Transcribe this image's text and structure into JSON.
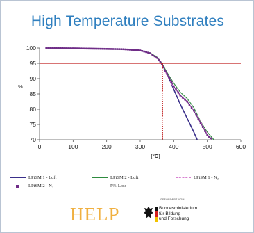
{
  "slide": {
    "title": "High Temperature Substrates"
  },
  "chart_data": {
    "type": "line",
    "title": "",
    "xlabel": "[°C]",
    "ylabel": "%",
    "xlim": [
      0,
      600
    ],
    "ylim": [
      70,
      100
    ],
    "xticks": [
      "0",
      "100",
      "200",
      "300",
      "400",
      "500",
      "600"
    ],
    "yticks": [
      "100",
      "95",
      "90",
      "85",
      "80",
      "75",
      "70"
    ],
    "grid": false,
    "legend": "bottom",
    "series": [
      {
        "name": "LPiSM 1 - Luft",
        "color": "#3a2f8a",
        "x": [
          20,
          100,
          200,
          250,
          300,
          330,
          350,
          365,
          380,
          400,
          420,
          440,
          460,
          470
        ],
        "y": [
          100,
          99.9,
          99.7,
          99.6,
          99.2,
          98.3,
          96.8,
          94.8,
          91.5,
          86.5,
          81.5,
          77,
          72.5,
          70
        ]
      },
      {
        "name": "LPiSM 2 - Luft",
        "color": "#2e8b3e",
        "x": [
          20,
          100,
          200,
          250,
          300,
          330,
          350,
          365,
          380,
          400,
          420,
          440,
          460,
          480,
          500,
          520
        ],
        "y": [
          100,
          99.9,
          99.7,
          99.6,
          99.2,
          98.4,
          97,
          95,
          92,
          88.5,
          85.5,
          83.5,
          80.5,
          76,
          72.5,
          70
        ]
      },
      {
        "name": "LPiSM 1 - N₂",
        "color": "#d77fd0",
        "x": [
          20,
          100,
          200,
          250,
          300,
          330,
          350,
          365,
          380,
          400,
          420,
          440,
          460,
          480,
          500,
          510
        ],
        "y": [
          100,
          99.9,
          99.7,
          99.6,
          99.2,
          98.2,
          96.6,
          94.5,
          91,
          87,
          84,
          82.5,
          79.5,
          76,
          72,
          70
        ]
      },
      {
        "name": "LPiSM 2 - N₂",
        "color": "#6f2c87",
        "x": [
          20,
          100,
          200,
          250,
          300,
          330,
          350,
          365,
          380,
          400,
          420,
          440,
          460,
          480,
          500,
          515
        ],
        "y": [
          100,
          99.9,
          99.7,
          99.6,
          99.2,
          98.3,
          96.8,
          94.8,
          91.5,
          87.5,
          84.5,
          82.5,
          79.5,
          75.5,
          71.5,
          70
        ]
      },
      {
        "name": "5%-Loss",
        "color": "#c02020",
        "x": [
          0,
          600
        ],
        "y": [
          95,
          95
        ]
      }
    ],
    "annotations": [
      {
        "type": "vline",
        "x": 367,
        "color": "#c02020",
        "style": "dotted"
      }
    ]
  },
  "legend_items": [
    {
      "label": "LPiSM 1 - Luft",
      "color": "#3a2f8a",
      "style": "solid"
    },
    {
      "label": "LPiSM 2 - Luft",
      "color": "#2e8b3e",
      "style": "solid"
    },
    {
      "label": "LPiSM 1 - N₂",
      "color": "#d77fd0",
      "style": "dashed"
    },
    {
      "label": "LPiSM 2 - N₂",
      "color": "#6f2c87",
      "style": "marker"
    },
    {
      "label": "5%-Loss",
      "color": "#c02020",
      "style": "dotted"
    }
  ],
  "logos": {
    "help": "HELP",
    "funder_label": "GEFÖRDERT VOM",
    "funder_name": "Bundesministerium\nfür Bildung\nund Forschung"
  }
}
